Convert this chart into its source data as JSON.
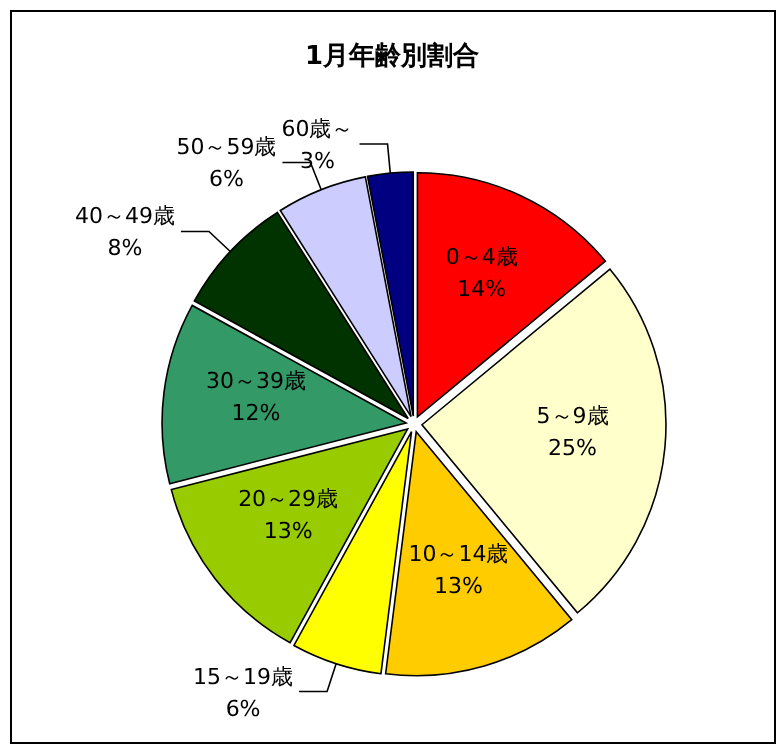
{
  "chart_data": {
    "type": "pie",
    "title": "1月年齢別割合",
    "categories": [
      "0～4歳",
      "5～9歳",
      "10～14歳",
      "15～19歳",
      "20～29歳",
      "30～39歳",
      "40～49歳",
      "50～59歳",
      "60歳～"
    ],
    "values": [
      14,
      25,
      13,
      6,
      13,
      12,
      8,
      6,
      3
    ],
    "colors": [
      "#ff0000",
      "#ffffcc",
      "#ffcc00",
      "#ffff00",
      "#99cc00",
      "#339966",
      "#003300",
      "#ccccff",
      "#000080"
    ],
    "value_labels": [
      "14%",
      "25%",
      "13%",
      "6%",
      "13%",
      "12%",
      "8%",
      "6%",
      "3%"
    ]
  }
}
